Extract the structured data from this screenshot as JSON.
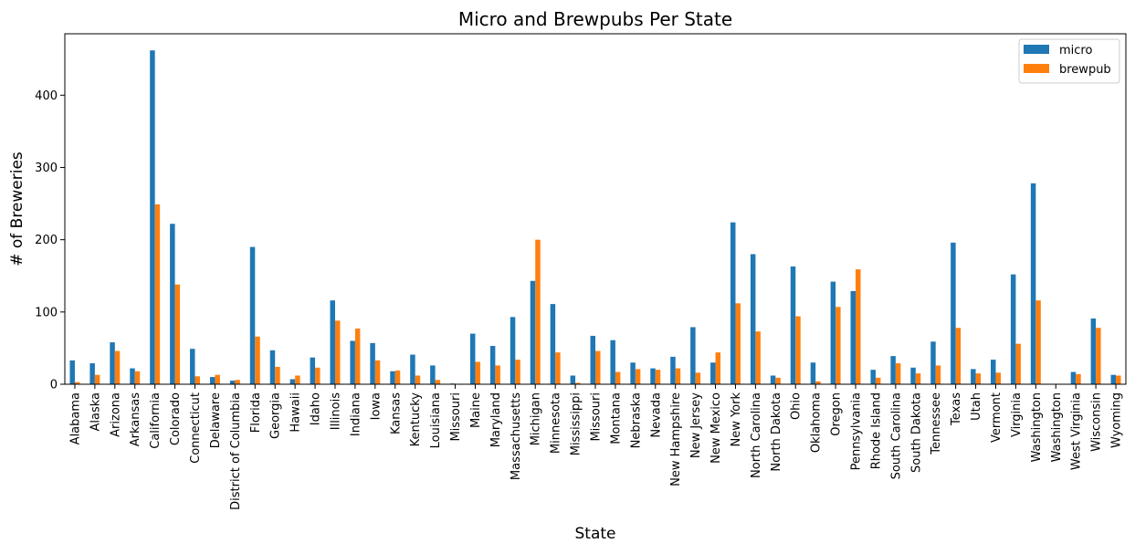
{
  "chart_data": {
    "type": "bar",
    "title": "Micro and Brewpubs Per State",
    "xlabel": "State",
    "ylabel": "# of Breweries",
    "ylim": [
      0,
      485
    ],
    "yticks": [
      0,
      100,
      200,
      300,
      400
    ],
    "legend_position": "top-right",
    "grid": false,
    "categories": [
      "Alabama",
      "Alaska",
      "Arizona",
      "Arkansas",
      "California",
      "Colorado",
      "Connecticut",
      "Delaware",
      "District of Columbia",
      "Florida",
      "Georgia",
      "Hawaii",
      "Idaho",
      "Illinois",
      "Indiana",
      "Iowa",
      "Kansas",
      "Kentucky",
      "Louisiana",
      "Missouri",
      "Maine",
      "Maryland",
      "Massachusetts",
      "Michigan",
      "Minnesota",
      "Mississippi",
      "Missouri",
      "Montana",
      "Nebraska",
      "Nevada",
      "New Hampshire",
      "New Jersey",
      "New Mexico",
      "New York",
      "North Carolina",
      "North Dakota",
      "Ohio",
      "Oklahoma",
      "Oregon",
      "Pennsylvania",
      "Rhode Island",
      "South Carolina",
      "South Dakota",
      "Tennessee",
      "Texas",
      "Utah",
      "Vermont",
      "Virginia",
      "Washington",
      "Washington",
      "West Virginia",
      "Wisconsin",
      "Wyoming"
    ],
    "series": [
      {
        "name": "micro",
        "color": "#1f77b4",
        "values": [
          33,
          29,
          58,
          22,
          462,
          222,
          49,
          10,
          5,
          190,
          47,
          7,
          37,
          116,
          60,
          57,
          18,
          41,
          26,
          1,
          70,
          53,
          93,
          143,
          111,
          12,
          67,
          61,
          30,
          22,
          38,
          79,
          30,
          224,
          180,
          12,
          163,
          30,
          142,
          129,
          20,
          39,
          23,
          59,
          196,
          21,
          34,
          152,
          278,
          0,
          17,
          91,
          13
        ]
      },
      {
        "name": "brewpub",
        "color": "#ff7f0e",
        "values": [
          3,
          13,
          46,
          18,
          249,
          138,
          11,
          13,
          6,
          66,
          24,
          12,
          23,
          88,
          77,
          33,
          19,
          12,
          6,
          0,
          31,
          26,
          34,
          200,
          44,
          2,
          46,
          17,
          21,
          20,
          22,
          16,
          44,
          112,
          73,
          9,
          94,
          4,
          107,
          159,
          9,
          29,
          15,
          26,
          78,
          15,
          16,
          56,
          116,
          0,
          14,
          78,
          12
        ]
      }
    ]
  }
}
